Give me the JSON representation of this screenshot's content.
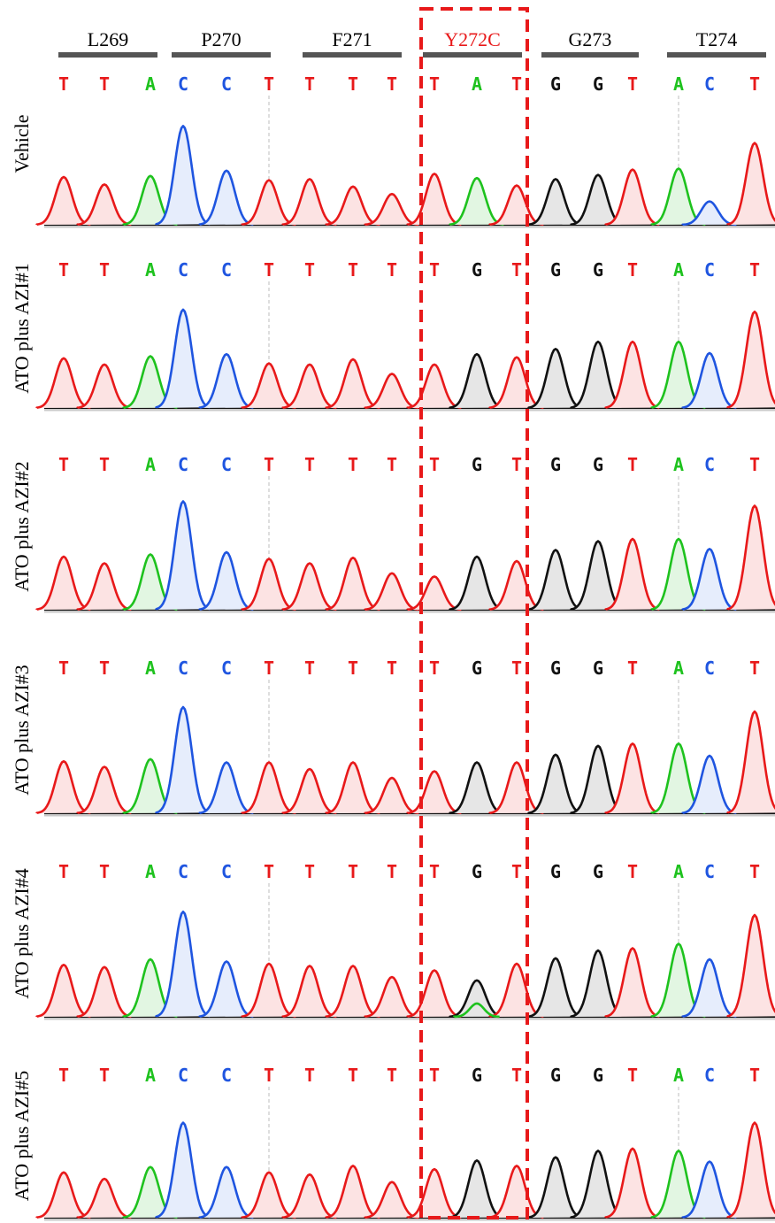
{
  "codons": [
    {
      "label": "L269",
      "mutant": false
    },
    {
      "label": "P270",
      "mutant": false
    },
    {
      "label": "F271",
      "mutant": false
    },
    {
      "label": "Y272C",
      "mutant": true
    },
    {
      "label": "G273",
      "mutant": false
    },
    {
      "label": "T274",
      "mutant": false
    }
  ],
  "colors": {
    "T": "#e8191a",
    "A": "#1ec21e",
    "C": "#1f55e0",
    "G": "#111111",
    "mutant_label": "#e8191a",
    "highlight_box": "#e8191a",
    "codon_bar": "#555555"
  },
  "panels": [
    {
      "label": "Vehicle",
      "bases": [
        "T",
        "T",
        "A",
        "C",
        "C",
        "T",
        "T",
        "T",
        "T",
        "T",
        "A",
        "T",
        "G",
        "G",
        "T",
        "A",
        "C",
        "T"
      ],
      "peak_heights": [
        0.45,
        0.38,
        0.46,
        0.93,
        0.51,
        0.42,
        0.43,
        0.36,
        0.29,
        0.48,
        0.44,
        0.37,
        0.43,
        0.47,
        0.52,
        0.53,
        0.22,
        0.77
      ],
      "secondary_peak": null
    },
    {
      "label": "ATO plus AZI#1",
      "bases": [
        "T",
        "T",
        "A",
        "C",
        "C",
        "T",
        "T",
        "T",
        "T",
        "T",
        "G",
        "T",
        "G",
        "G",
        "T",
        "A",
        "C",
        "T"
      ],
      "peak_heights": [
        0.48,
        0.42,
        0.5,
        0.95,
        0.52,
        0.43,
        0.42,
        0.47,
        0.33,
        0.42,
        0.52,
        0.49,
        0.57,
        0.64,
        0.64,
        0.64,
        0.53,
        0.93
      ],
      "secondary_peak": null
    },
    {
      "label": "ATO plus AZI#2",
      "bases": [
        "T",
        "T",
        "A",
        "C",
        "C",
        "T",
        "T",
        "T",
        "T",
        "T",
        "G",
        "T",
        "G",
        "G",
        "T",
        "A",
        "C",
        "T"
      ],
      "peak_heights": [
        0.48,
        0.42,
        0.5,
        0.98,
        0.52,
        0.46,
        0.42,
        0.47,
        0.33,
        0.3,
        0.48,
        0.44,
        0.54,
        0.62,
        0.64,
        0.64,
        0.55,
        0.94
      ],
      "secondary_peak": null
    },
    {
      "label": "ATO plus AZI#3",
      "bases": [
        "T",
        "T",
        "A",
        "C",
        "C",
        "T",
        "T",
        "T",
        "T",
        "T",
        "G",
        "T",
        "G",
        "G",
        "T",
        "A",
        "C",
        "T"
      ],
      "peak_heights": [
        0.47,
        0.42,
        0.49,
        0.96,
        0.46,
        0.46,
        0.4,
        0.46,
        0.32,
        0.38,
        0.46,
        0.46,
        0.53,
        0.61,
        0.63,
        0.63,
        0.52,
        0.92
      ],
      "secondary_peak": null
    },
    {
      "label": "ATO plus AZI#4",
      "bases": [
        "T",
        "T",
        "A",
        "C",
        "C",
        "T",
        "T",
        "T",
        "T",
        "T",
        "G",
        "T",
        "G",
        "G",
        "T",
        "A",
        "C",
        "T"
      ],
      "peak_heights": [
        0.47,
        0.45,
        0.52,
        0.95,
        0.5,
        0.48,
        0.46,
        0.46,
        0.36,
        0.42,
        0.33,
        0.48,
        0.53,
        0.6,
        0.62,
        0.66,
        0.52,
        0.92
      ],
      "secondary_peak": {
        "index": 10,
        "base": "A",
        "height": 0.12
      }
    },
    {
      "label": "ATO plus AZI#5",
      "bases": [
        "T",
        "T",
        "A",
        "C",
        "C",
        "T",
        "T",
        "T",
        "T",
        "T",
        "G",
        "T",
        "G",
        "G",
        "T",
        "A",
        "C",
        "T"
      ],
      "peak_heights": [
        0.42,
        0.36,
        0.47,
        0.88,
        0.47,
        0.42,
        0.4,
        0.48,
        0.33,
        0.45,
        0.53,
        0.48,
        0.56,
        0.62,
        0.64,
        0.62,
        0.52,
        0.88
      ],
      "secondary_peak": null
    }
  ]
}
